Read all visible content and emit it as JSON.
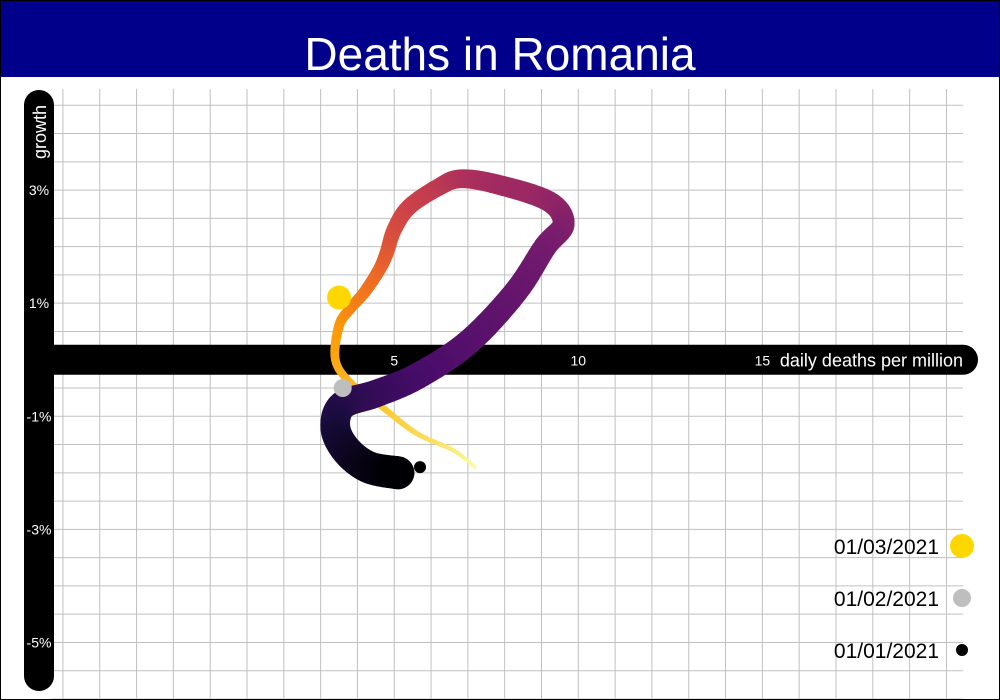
{
  "chart_data": {
    "type": "line",
    "title": "Deaths in Romania",
    "xlabel": "daily deaths per million",
    "ylabel": "growth",
    "xlim": [
      -4.65,
      20.45
    ],
    "ylim": [
      -6.0,
      5.0
    ],
    "x_ticks": [
      5,
      10,
      15
    ],
    "x_tick_labels": [
      "5",
      "10",
      "15"
    ],
    "y_ticks": [
      3,
      1,
      -1,
      -3,
      -5
    ],
    "y_tick_labels": [
      "3%",
      "1%",
      "-1%",
      "-3%",
      "-5%"
    ],
    "grid": true,
    "legend_position": "bottom-right",
    "series": [
      {
        "x": [
          5.1,
          4.3,
          3.7,
          3.4,
          3.6,
          4.5,
          5.6,
          7.0,
          8.3,
          9.1,
          9.6,
          9.2,
          7.8,
          6.8,
          6.2,
          5.4,
          5.0,
          4.8,
          4.6,
          4.2,
          3.8,
          3.5,
          3.4,
          3.8,
          4.6,
          5.6,
          6.6,
          7.2
        ],
        "y": [
          -2.0,
          -1.9,
          -1.6,
          -1.2,
          -0.8,
          -0.6,
          -0.3,
          0.3,
          1.2,
          2.0,
          2.4,
          2.8,
          3.1,
          3.2,
          3.05,
          2.7,
          2.3,
          1.9,
          1.6,
          1.2,
          0.9,
          0.6,
          0.0,
          -0.4,
          -0.8,
          -1.3,
          -1.6,
          -1.9
        ],
        "dates": [
          "01/03/2021",
          "01/02/2021",
          "01/01/2021"
        ]
      }
    ],
    "markers": [
      {
        "label": "01/03/2021",
        "x": 3.5,
        "y": 1.1,
        "color": "#ffd700",
        "size": "large"
      },
      {
        "label": "01/02/2021",
        "x": 3.6,
        "y": -0.5,
        "color": "#bebebe",
        "size": "medium"
      },
      {
        "label": "01/01/2021",
        "x": 5.7,
        "y": -1.9,
        "color": "#000000",
        "size": "small"
      }
    ],
    "colors": {
      "header_bg": "#00008b",
      "title_text": "#ffffff",
      "axis": "#000000",
      "grid": "#c0c0c0",
      "gradient": [
        "#fcffa4",
        "#f9c932",
        "#fb9b06",
        "#ed6925",
        "#cf4446",
        "#a52c60",
        "#781c6d",
        "#4a0c6b",
        "#1b0c41",
        "#000004"
      ]
    }
  },
  "legend": [
    {
      "label": "01/03/2021",
      "color": "#ffd700"
    },
    {
      "label": "01/02/2021",
      "color": "#bebebe"
    },
    {
      "label": "01/01/2021",
      "color": "#000000"
    }
  ]
}
